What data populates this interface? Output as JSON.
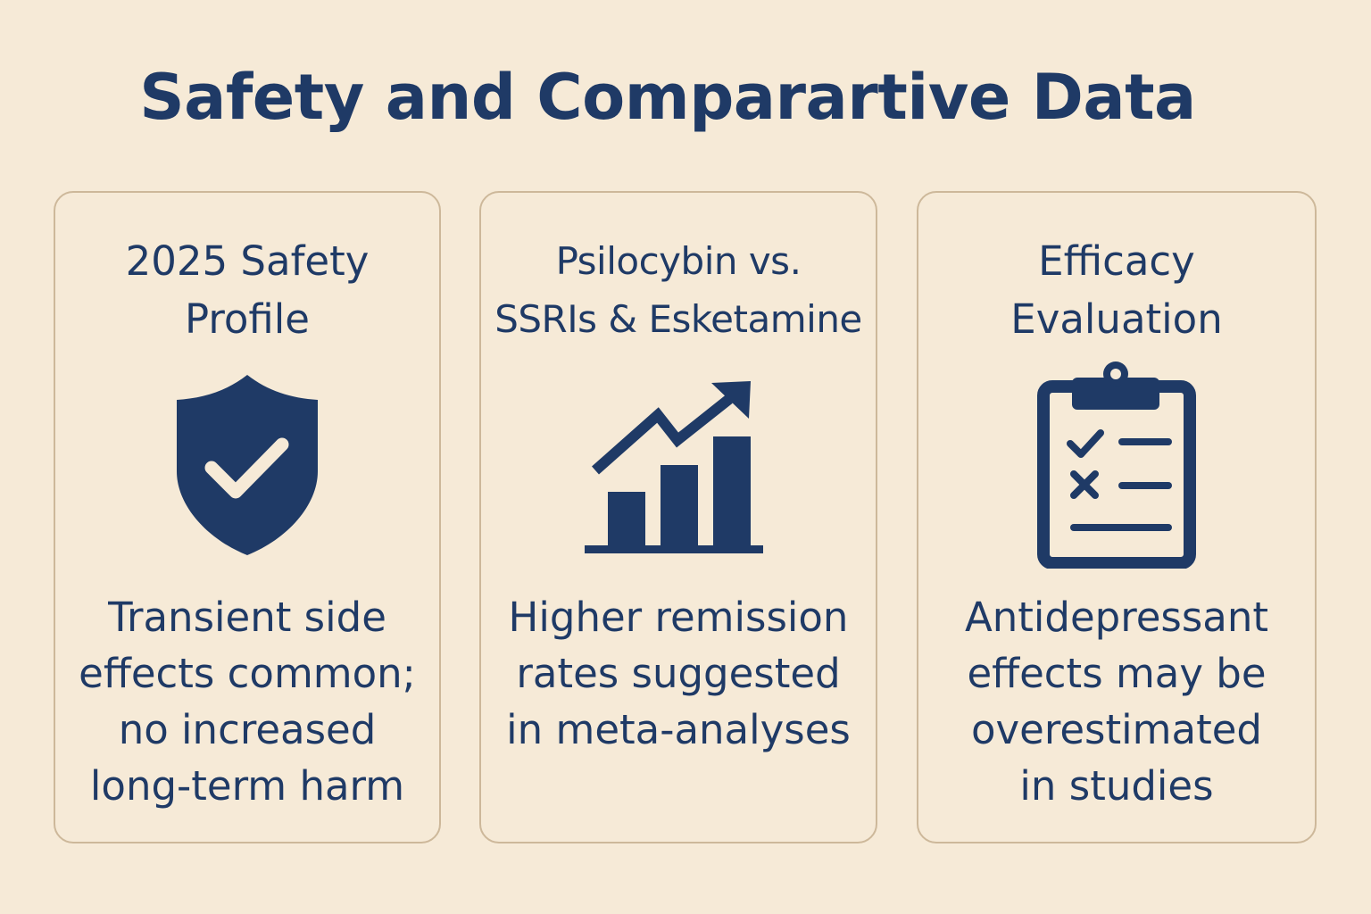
{
  "page": {
    "title": "Safety and Comparartive Data",
    "background_color": "#F6EAD7",
    "accent_color": "#1F3A66",
    "border_color": "#CDB89A"
  },
  "cards": [
    {
      "title": "2025 Safety\nProfile",
      "icon": "shield-check-icon",
      "body": "Transient side\neffects common;\nno increased\nlong-term harm"
    },
    {
      "title": "Psilocybin vs.\nSSRIs & Esketamine",
      "icon": "bar-chart-trend-up-icon",
      "body": "Higher remission\nrates suggested\nin meta-analyses"
    },
    {
      "title": "Efficacy\nEvaluation",
      "icon": "clipboard-checklist-icon",
      "body": "Antidepressant\neffects may be\noverestimated\nin studies"
    }
  ]
}
